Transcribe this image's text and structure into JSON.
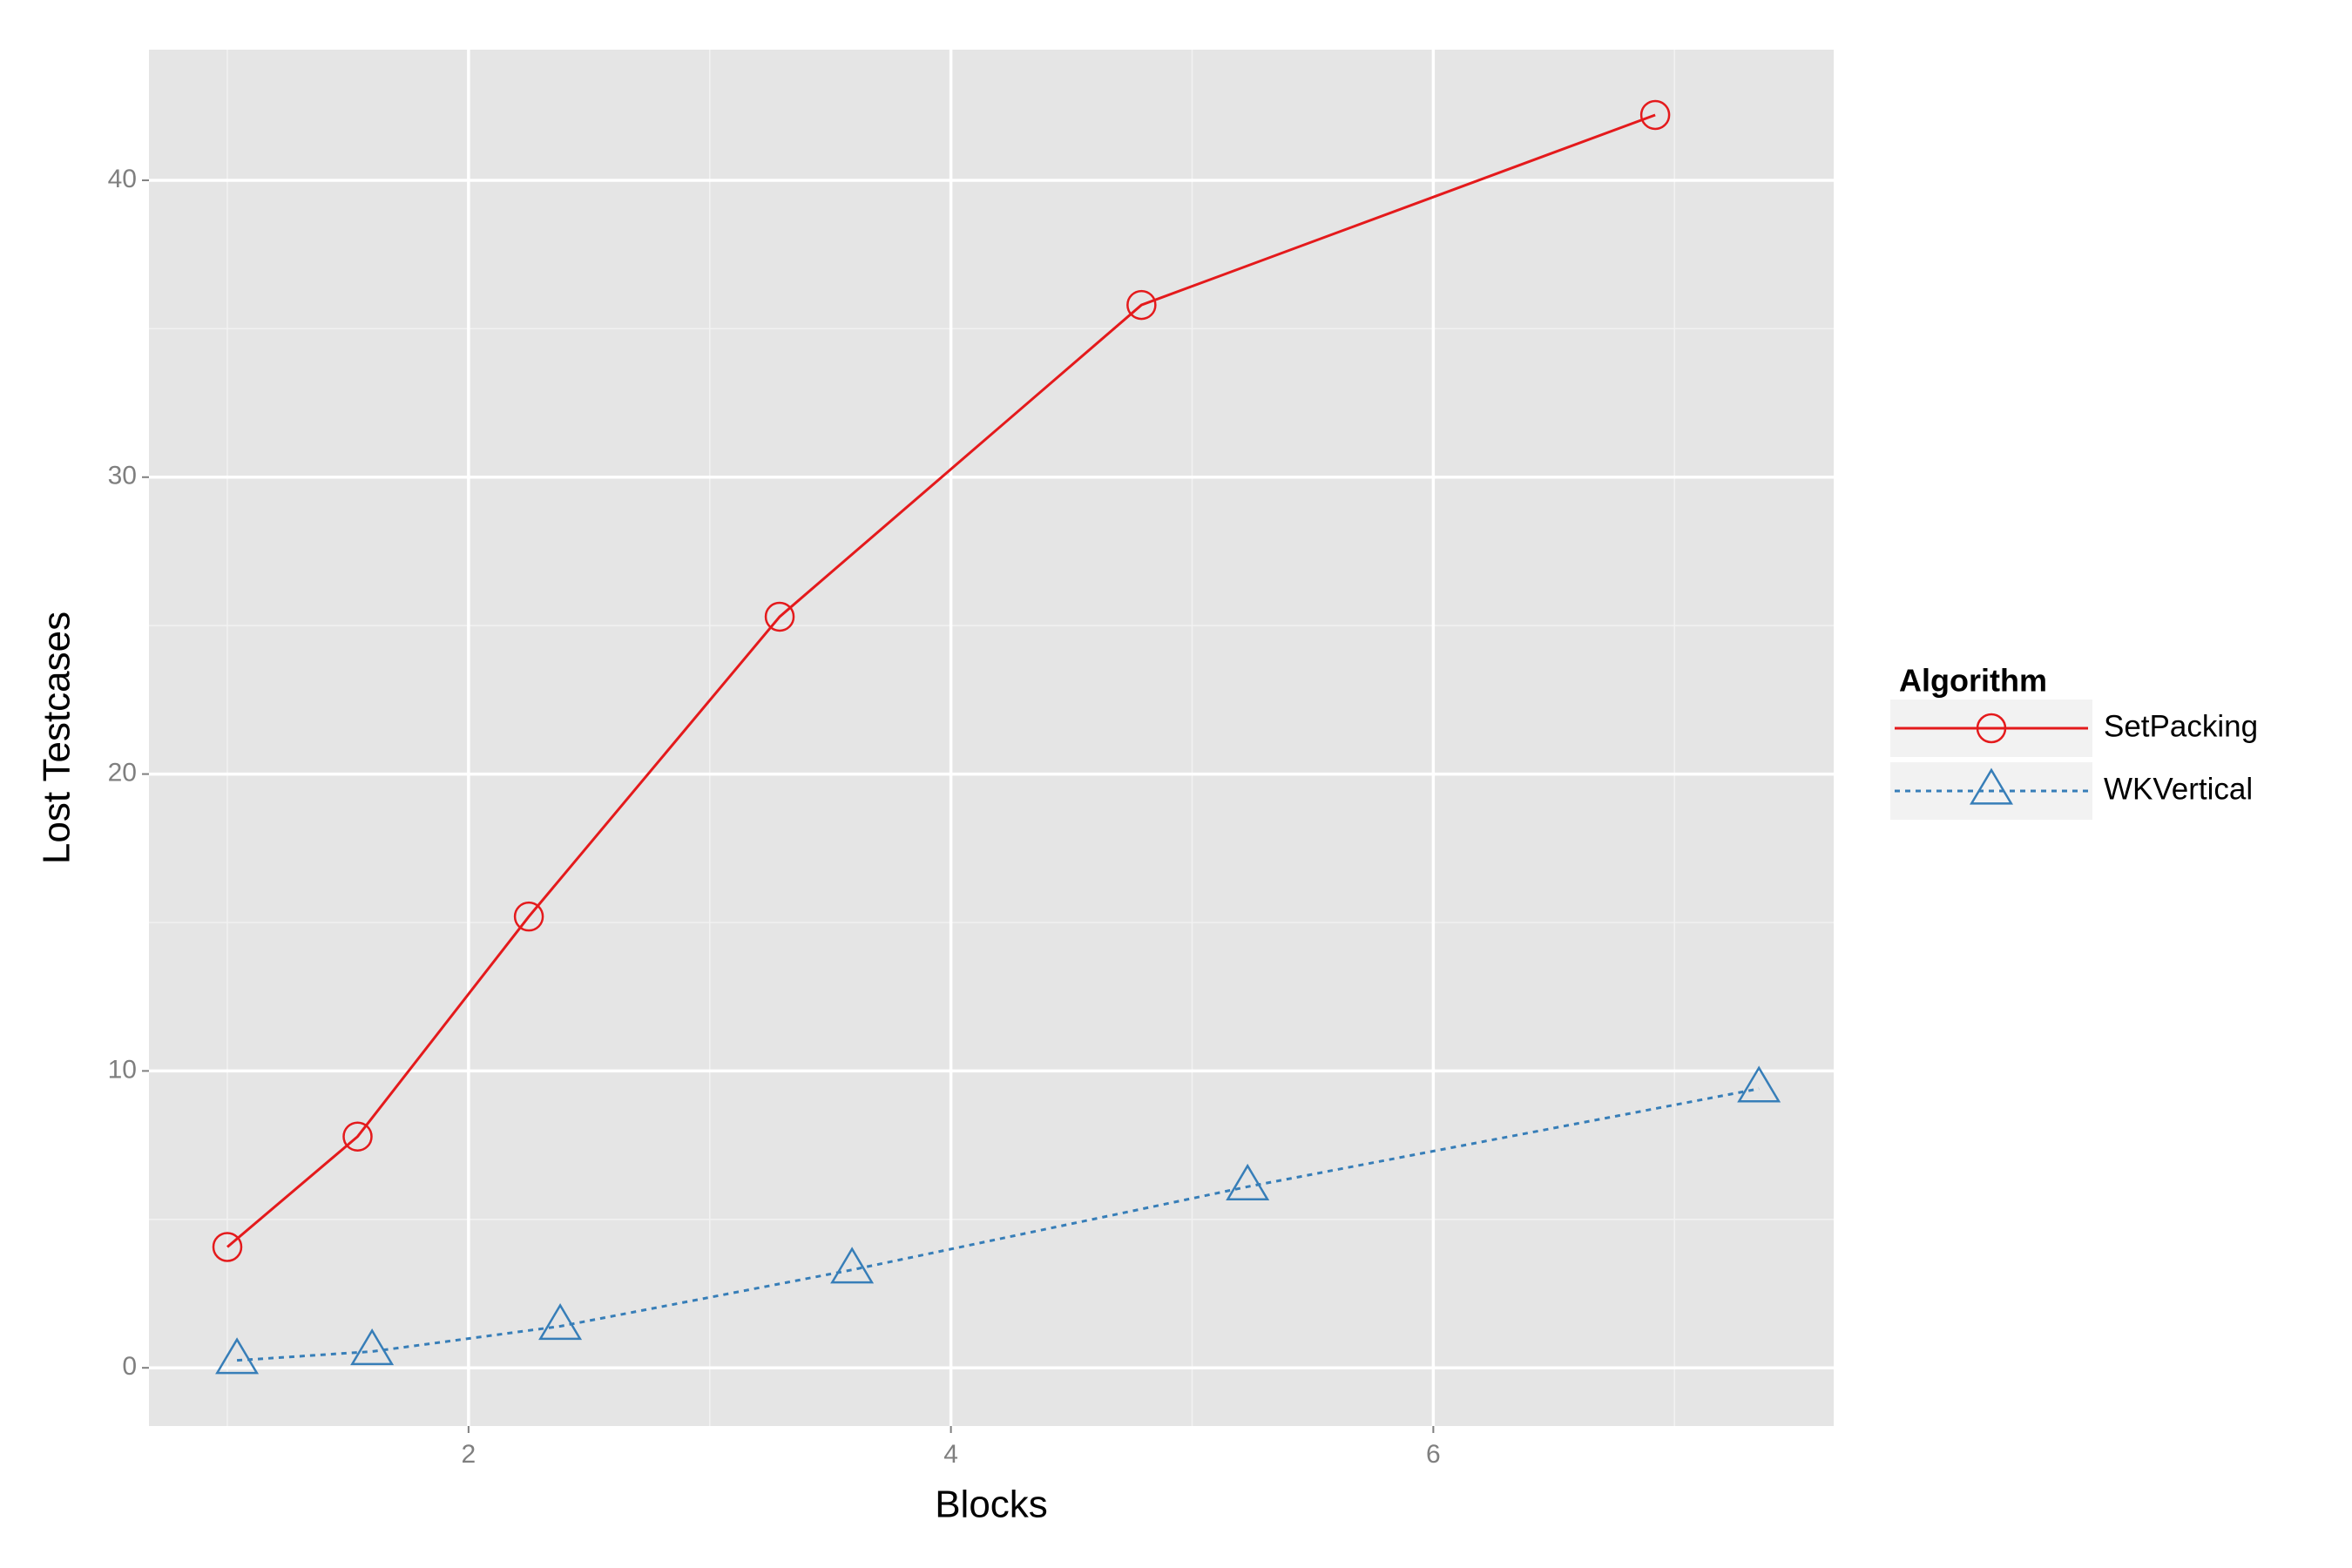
{
  "chart_data": {
    "type": "line",
    "x_label": "Blocks",
    "y_label": "Lost Testcases",
    "legend_title": "Algorithm",
    "legend": "right",
    "xlim": [
      0.675,
      7.66
    ],
    "ylim": [
      -1.96,
      44.4
    ],
    "xticks": [
      2,
      4,
      6
    ],
    "yticks": [
      0,
      10,
      20,
      30,
      40
    ],
    "x_minor": [
      1,
      3,
      5,
      7
    ],
    "y_minor": [
      5,
      15,
      25,
      35
    ],
    "grid": true,
    "series": [
      {
        "name": "SetPacking",
        "color": "#e41a1c",
        "marker": "circle",
        "linestyle": "solid",
        "x": [
          1.0,
          1.54,
          2.25,
          3.29,
          4.79,
          6.92
        ],
        "values": [
          4.07,
          7.79,
          15.2,
          25.3,
          35.8,
          42.2
        ]
      },
      {
        "name": "WKVertical",
        "color": "#377eb8",
        "marker": "triangle",
        "linestyle": "dotted",
        "x": [
          1.04,
          1.6,
          2.38,
          3.59,
          5.23,
          7.35
        ],
        "values": [
          0.25,
          0.55,
          1.4,
          3.3,
          6.1,
          9.4
        ]
      }
    ]
  }
}
